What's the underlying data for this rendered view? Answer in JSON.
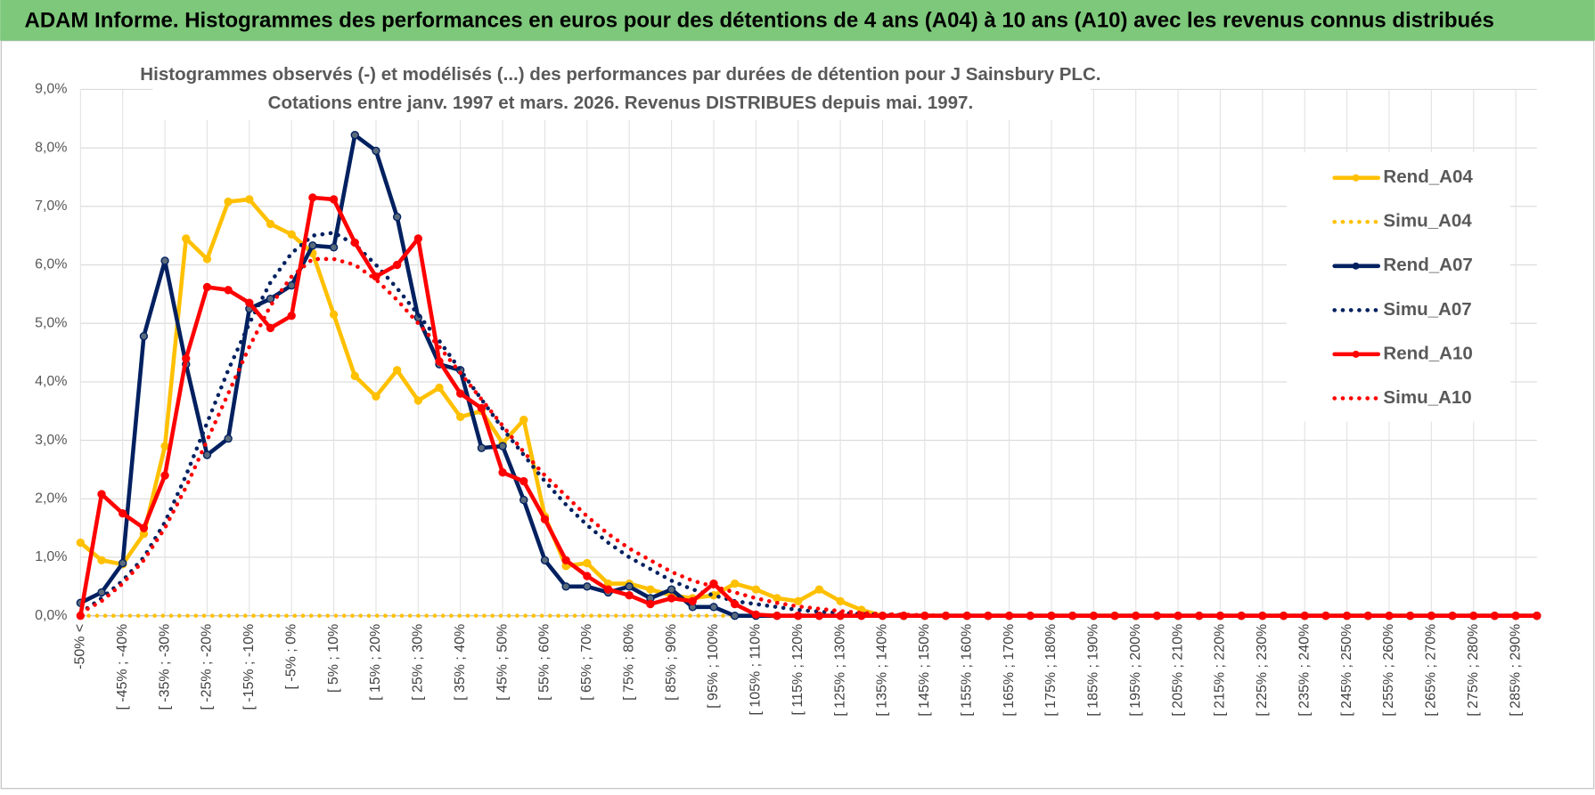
{
  "header": {
    "title": "ADAM Informe. Histogrammes des performances en euros pour des détentions de 4 ans (A04) à 10 ans (A10) avec les revenus connus distribués"
  },
  "chart_data": {
    "type": "line",
    "title": "Histogrammes observés (-) et modélisés (...) des performances par durées de détention pour J Sainsbury PLC.",
    "subtitle": "Cotations entre janv. 1997 et mars. 2026. Revenus DISTRIBUES depuis mai. 1997.",
    "categories": [
      "-50% <",
      null,
      "[ -45% ; -40%",
      null,
      "[ -35% ; -30%",
      null,
      "[ -25% ; -20%",
      null,
      "[ -15% ; -10%",
      null,
      "[ -5% ; 0%",
      null,
      "[ 5% ; 10%",
      null,
      "[ 15% ; 20%",
      null,
      "[ 25% ; 30%",
      null,
      "[ 35% ; 40%",
      null,
      "[ 45% ; 50%",
      null,
      "[ 55% ; 60%",
      null,
      "[ 65% ; 70%",
      null,
      "[ 75% ; 80%",
      null,
      "[ 85% ; 90%",
      null,
      "[ 95% ; 100%",
      null,
      "[ 105% ; 110%",
      null,
      "[ 115% ; 120%",
      null,
      "[ 125% ; 130%",
      null,
      "[ 135% ; 140%",
      null,
      "[ 145% ; 150%",
      null,
      "[ 155% ; 160%",
      null,
      "[ 165% ; 170%",
      null,
      "[ 175% ; 180%",
      null,
      "[ 185% ; 190%",
      null,
      "[ 195% ; 200%",
      null,
      "[ 205% ; 210%",
      null,
      "[ 215% ; 220%",
      null,
      "[ 225% ; 230%",
      null,
      "[ 235% ; 240%",
      null,
      "[ 245% ; 250%",
      null,
      "[ 255% ; 260%",
      null,
      "[ 265% ; 270%",
      null,
      "[ 275% ; 280%",
      null,
      "[ 285% ; 290%",
      null
    ],
    "series": [
      {
        "name": "Rend_A04",
        "color": "#FFC000",
        "line_style": "solid",
        "marker": true,
        "values": [
          1.25,
          0.95,
          0.88,
          1.4,
          2.9,
          6.45,
          6.1,
          7.08,
          7.12,
          6.7,
          6.52,
          6.2,
          5.15,
          4.1,
          3.75,
          4.2,
          3.68,
          3.9,
          3.4,
          3.5,
          2.95,
          3.35,
          1.7,
          0.85,
          0.9,
          0.55,
          0.55,
          0.45,
          0.35,
          0.3,
          0.35,
          0.55,
          0.45,
          0.3,
          0.25,
          0.45,
          0.25,
          0.1,
          0,
          0,
          0,
          0,
          0,
          0,
          0,
          0,
          0,
          0,
          0,
          0,
          0,
          0,
          0,
          0,
          0,
          0,
          0,
          0,
          0,
          0,
          0,
          0,
          0,
          0,
          0,
          0,
          0,
          0,
          0,
          0
        ]
      },
      {
        "name": "Simu_A04",
        "color": "#FFC000",
        "line_style": "dotted",
        "marker": false,
        "values": [
          0,
          0,
          0,
          0,
          0,
          0,
          0,
          0,
          0,
          0,
          0,
          0,
          0,
          0,
          0,
          0,
          0,
          0,
          0,
          0,
          0,
          0,
          0,
          0,
          0,
          0,
          0,
          0,
          0,
          0,
          0,
          0,
          0,
          0,
          0,
          0,
          0,
          0,
          0,
          0,
          0,
          0,
          0,
          0,
          0,
          0,
          0,
          0,
          0,
          0,
          0,
          0,
          0,
          0,
          0,
          0,
          0,
          0,
          0,
          0,
          0,
          0,
          0,
          0,
          0,
          0,
          0,
          0,
          0,
          0
        ]
      },
      {
        "name": "Rend_A07",
        "color": "#002060",
        "line_style": "solid",
        "marker": true,
        "values": [
          0.22,
          0.4,
          0.9,
          4.78,
          6.07,
          4.3,
          2.75,
          3.03,
          5.25,
          5.42,
          5.65,
          6.33,
          6.3,
          8.22,
          7.95,
          6.82,
          5.1,
          4.3,
          4.2,
          2.87,
          2.9,
          1.98,
          0.95,
          0.5,
          0.5,
          0.4,
          0.5,
          0.3,
          0.45,
          0.15,
          0.15,
          0,
          0,
          0,
          0,
          0,
          0,
          0,
          0,
          0,
          0,
          0,
          0,
          0,
          0,
          0,
          0,
          0,
          0,
          0,
          0,
          0,
          0,
          0,
          0,
          0,
          0,
          0,
          0,
          0,
          0,
          0,
          0,
          0,
          0,
          0,
          0,
          0,
          0,
          0
        ]
      },
      {
        "name": "Simu_A07",
        "color": "#002060",
        "line_style": "dotted",
        "marker": false,
        "values": [
          0.05,
          0.3,
          0.6,
          1.0,
          1.6,
          2.4,
          3.3,
          4.2,
          5.0,
          5.7,
          6.2,
          6.5,
          6.55,
          6.35,
          6.0,
          5.6,
          5.15,
          4.7,
          4.2,
          3.7,
          3.2,
          2.75,
          2.3,
          1.9,
          1.55,
          1.25,
          1.0,
          0.8,
          0.6,
          0.45,
          0.35,
          0.25,
          0.2,
          0.15,
          0.1,
          0.07,
          0.05,
          0.03,
          0.02,
          0.01,
          0,
          0,
          0,
          0,
          0,
          0,
          0,
          0,
          0,
          0,
          0,
          0,
          0,
          0,
          0,
          0,
          0,
          0,
          0,
          0,
          0,
          0,
          0,
          0,
          0,
          0,
          0,
          0,
          0,
          0
        ]
      },
      {
        "name": "Rend_A10",
        "color": "#FF0000",
        "line_style": "solid",
        "marker": true,
        "values": [
          0,
          2.08,
          1.75,
          1.5,
          2.4,
          4.4,
          5.62,
          5.57,
          5.35,
          4.92,
          5.13,
          7.15,
          7.12,
          6.38,
          5.8,
          6.0,
          6.45,
          4.35,
          3.8,
          3.55,
          2.45,
          2.3,
          1.65,
          0.95,
          0.68,
          0.45,
          0.35,
          0.2,
          0.3,
          0.25,
          0.55,
          0.2,
          0.02,
          0,
          0,
          0,
          0,
          0,
          0,
          0,
          0,
          0,
          0,
          0,
          0,
          0,
          0,
          0,
          0,
          0,
          0,
          0,
          0,
          0,
          0,
          0,
          0,
          0,
          0,
          0,
          0,
          0,
          0,
          0,
          0,
          0,
          0,
          0,
          0,
          0
        ]
      },
      {
        "name": "Simu_A10",
        "color": "#FF0000",
        "line_style": "dotted",
        "marker": false,
        "values": [
          0.05,
          0.25,
          0.55,
          0.95,
          1.5,
          2.2,
          3.0,
          3.8,
          4.6,
          5.3,
          5.8,
          6.1,
          6.1,
          6.0,
          5.75,
          5.4,
          5.0,
          4.6,
          4.15,
          3.7,
          3.25,
          2.8,
          2.4,
          2.05,
          1.7,
          1.4,
          1.15,
          0.95,
          0.75,
          0.6,
          0.5,
          0.4,
          0.3,
          0.22,
          0.16,
          0.12,
          0.08,
          0.05,
          0.03,
          0.02,
          0.01,
          0,
          0,
          0,
          0,
          0,
          0,
          0,
          0,
          0,
          0,
          0,
          0,
          0,
          0,
          0,
          0,
          0,
          0,
          0,
          0,
          0,
          0,
          0,
          0,
          0,
          0,
          0,
          0,
          0
        ]
      }
    ],
    "ylim": [
      0,
      9
    ],
    "yticks": [
      {
        "value": 0,
        "label": "0,0%"
      },
      {
        "value": 1,
        "label": "1,0%"
      },
      {
        "value": 2,
        "label": "2,0%"
      },
      {
        "value": 3,
        "label": "3,0%"
      },
      {
        "value": 4,
        "label": "4,0%"
      },
      {
        "value": 5,
        "label": "5,0%"
      },
      {
        "value": 6,
        "label": "6,0%"
      },
      {
        "value": 7,
        "label": "7,0%"
      },
      {
        "value": 8,
        "label": "8,0%"
      },
      {
        "value": 9,
        "label": "9,0%"
      }
    ],
    "grid": true,
    "legend": "right"
  }
}
